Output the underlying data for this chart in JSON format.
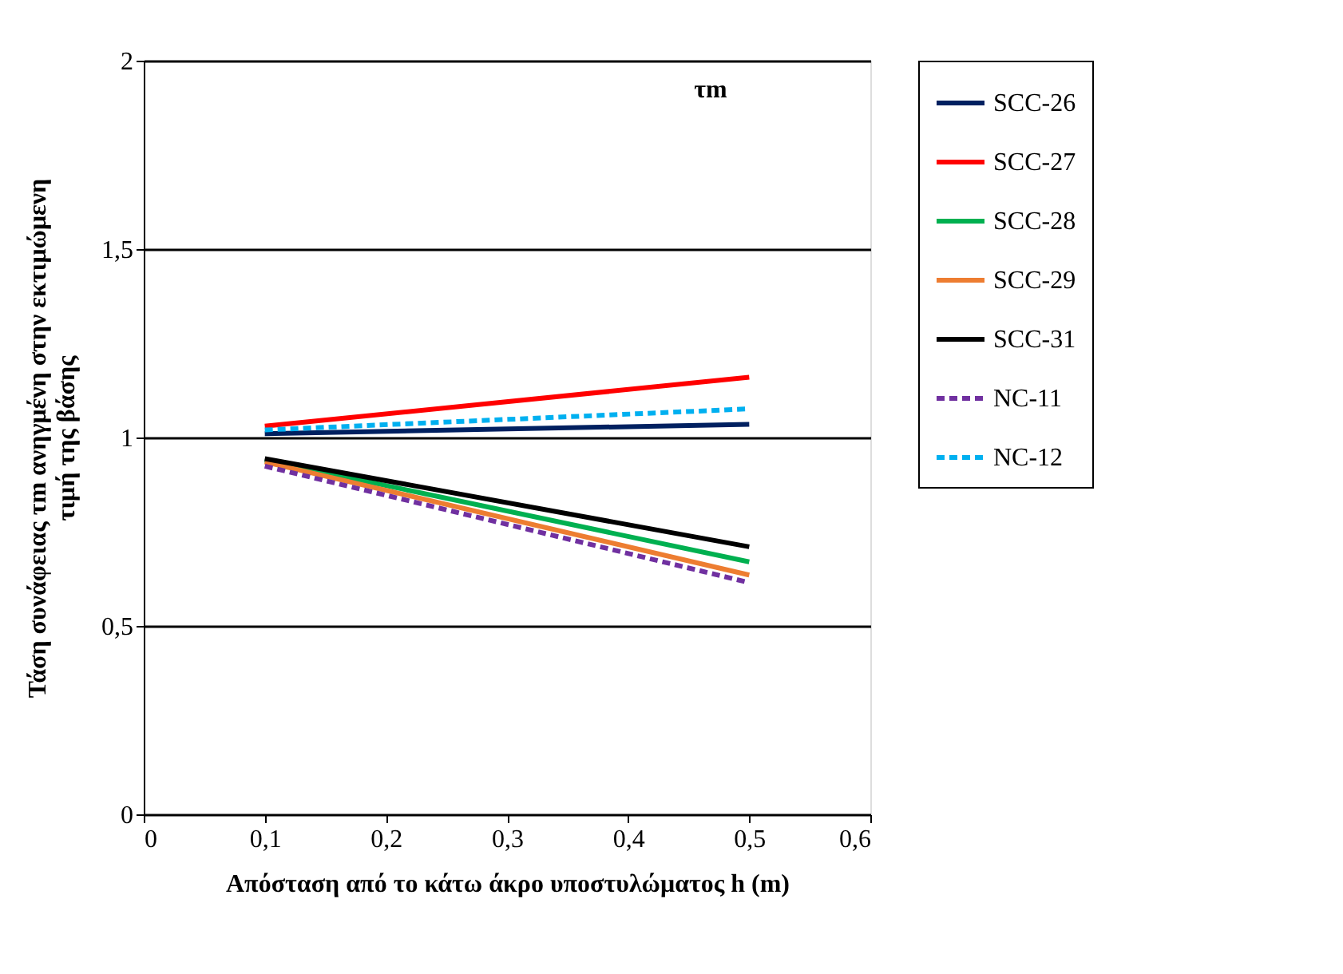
{
  "chart_data": {
    "type": "line",
    "xlabel": "Απόσταση από το κάτω άκρο υποστυλώματος h (m)",
    "ylabel": [
      "Τάση συνάφειας τm ανηγμένη στην εκτιμώμενη",
      "τιμή της βάσης"
    ],
    "annotations": [
      "τm"
    ],
    "x": [
      0.1,
      0.5
    ],
    "series": [
      {
        "name": "SCC-26",
        "color": "#002060",
        "values": [
          1.01,
          1.035
        ],
        "line_style": "solid"
      },
      {
        "name": "SCC-27",
        "color": "#ff0000",
        "values": [
          1.03,
          1.16
        ],
        "line_style": "solid"
      },
      {
        "name": "SCC-28",
        "color": "#00b050",
        "values": [
          0.94,
          0.67
        ],
        "line_style": "solid"
      },
      {
        "name": "SCC-29",
        "color": "#ed7d31",
        "values": [
          0.935,
          0.635
        ],
        "line_style": "solid"
      },
      {
        "name": "SCC-31",
        "color": "#000000",
        "values": [
          0.944,
          0.71
        ],
        "line_style": "solid"
      },
      {
        "name": "NC-11",
        "color": "#7030a0",
        "values": [
          0.924,
          0.615
        ],
        "line_style": "dashed"
      },
      {
        "name": "NC-12",
        "color": "#00b0f0",
        "values": [
          1.02,
          1.076
        ],
        "line_style": "dashed"
      }
    ],
    "xlim": [
      0,
      0.6
    ],
    "xticks": [
      0,
      {
        "value": 0.1,
        "label": "0,1"
      },
      {
        "value": 0.2,
        "label": "0,2"
      },
      {
        "value": 0.3,
        "label": "0,3"
      },
      {
        "value": 0.4,
        "label": "0,4"
      },
      {
        "value": 0.5,
        "label": "0,5"
      },
      {
        "value": 0.6,
        "label": "0,6"
      }
    ],
    "ylim": [
      0,
      2
    ],
    "yticks": [
      0,
      {
        "value": 0.5,
        "label": "0,5"
      },
      1,
      {
        "value": 1.5,
        "label": "1,5"
      },
      2
    ],
    "grid": "y",
    "legend": "right",
    "marker": "none"
  }
}
